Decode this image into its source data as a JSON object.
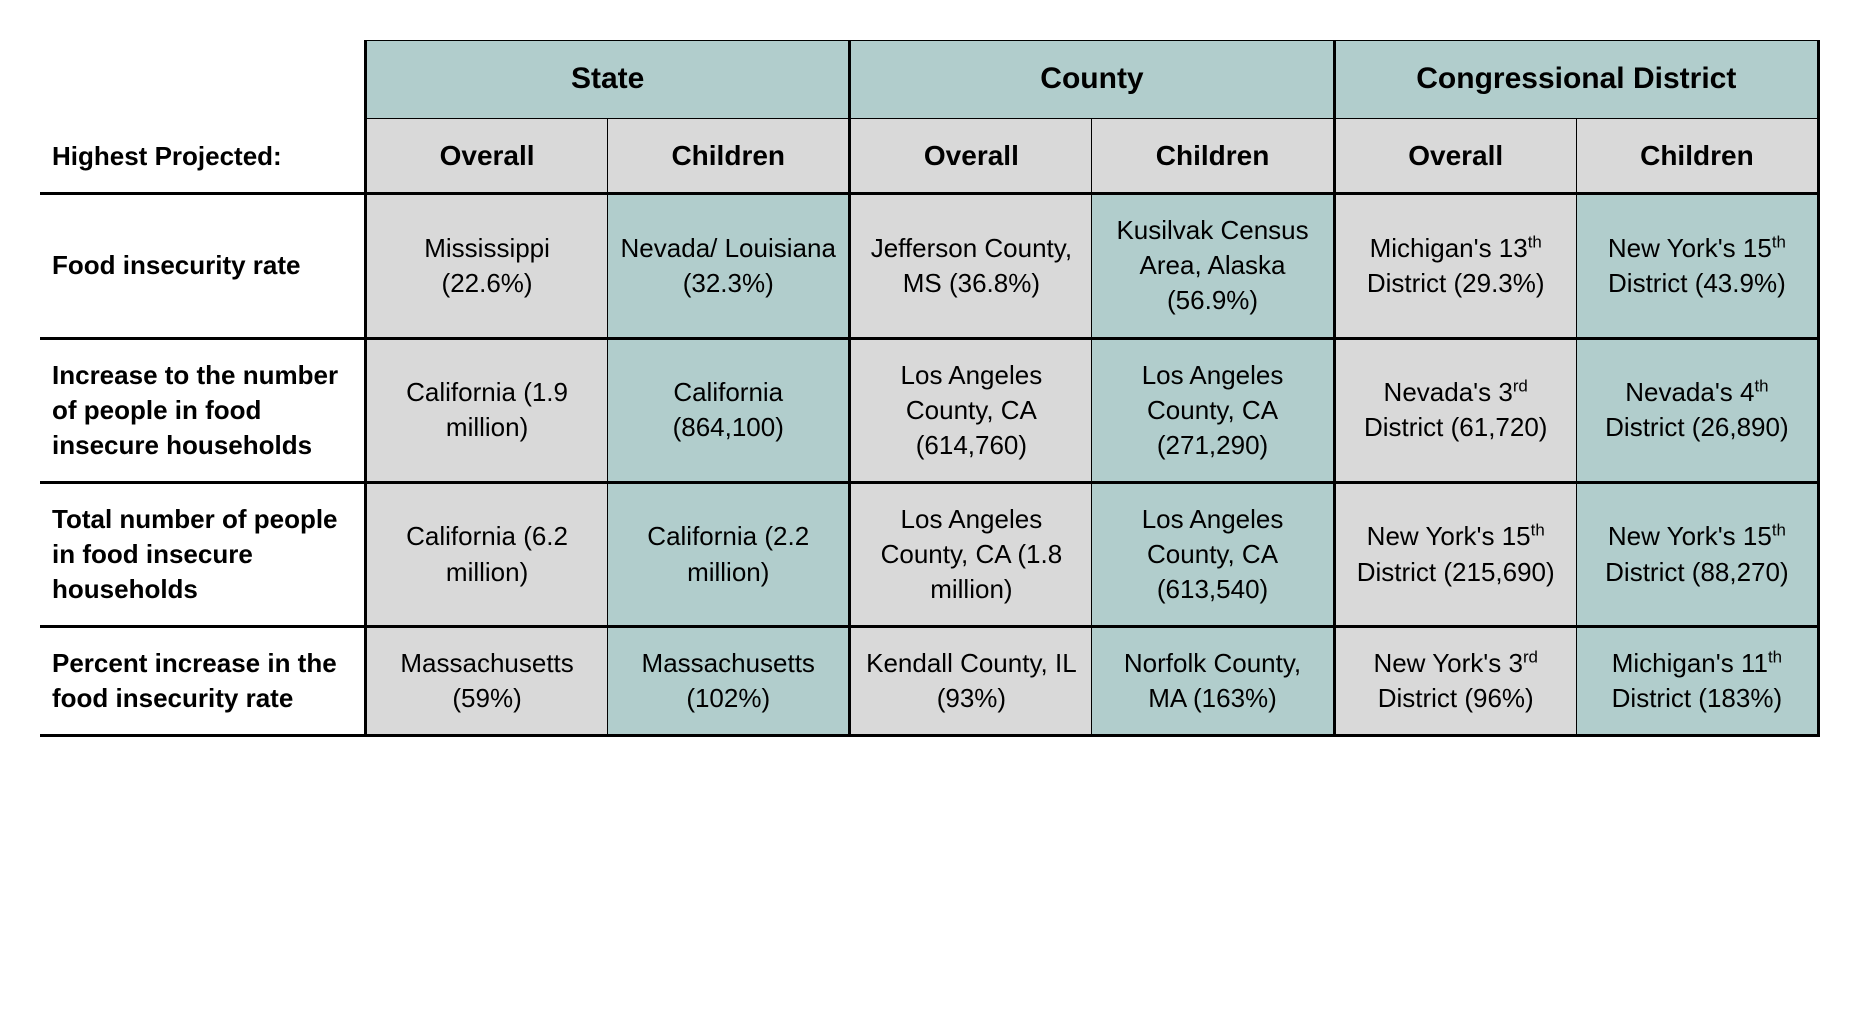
{
  "table": {
    "corner_label": "Highest Projected:",
    "groups": [
      "State",
      "County",
      "Congressional District"
    ],
    "subcolumns": [
      "Overall",
      "Children"
    ],
    "row_labels": [
      "Food insecurity rate",
      "Increase to the number of people in food insecure households",
      "Total number of people in food insecure households",
      "Percent increase in the food insecurity rate"
    ],
    "rows": [
      [
        {
          "text": "Mississippi (22.6%)"
        },
        {
          "text": "Nevada/ Louisiana (32.3%)"
        },
        {
          "text": "Jefferson County, MS (36.8%)"
        },
        {
          "text": "Kusilvak Census Area, Alaska (56.9%)"
        },
        {
          "html": "Michigan's 13<sup>th</sup> District (29.3%)"
        },
        {
          "html": "New York's 15<sup>th</sup> District (43.9%)"
        }
      ],
      [
        {
          "text": "California (1.9 million)"
        },
        {
          "text": "California (864,100)"
        },
        {
          "text": "Los Angeles County, CA (614,760)"
        },
        {
          "text": "Los Angeles County, CA (271,290)"
        },
        {
          "html": "Nevada's 3<sup>rd</sup> District (61,720)"
        },
        {
          "html": "Nevada's 4<sup>th</sup> District (26,890)"
        }
      ],
      [
        {
          "text": "California (6.2 million)"
        },
        {
          "text": "California (2.2 million)"
        },
        {
          "text": "Los Angeles County, CA (1.8 million)"
        },
        {
          "text": "Los Angeles County, CA (613,540)"
        },
        {
          "html": "New York's 15<sup>th</sup> District (215,690)"
        },
        {
          "html": "New York's 15<sup>th</sup> District (88,270)"
        }
      ],
      [
        {
          "text": "Massachusetts (59%)"
        },
        {
          "text": "Massachusetts (102%)"
        },
        {
          "text": "Kendall County, IL (93%)"
        },
        {
          "text": "Norfolk County, MA (163%)"
        },
        {
          "html": "New York's 3<sup>rd</sup> District (96%)"
        },
        {
          "html": "Michigan's 11<sup>th</sup> District (183%)"
        }
      ]
    ],
    "colors": {
      "overall_bg": "#d9d9d9",
      "children_bg": "#b1cdcc",
      "border": "#000000",
      "text": "#000000",
      "page_bg": "#ffffff"
    },
    "font_sizes": {
      "group_header": 30,
      "sub_header": 28,
      "row_header": 26,
      "cell": 26
    }
  }
}
